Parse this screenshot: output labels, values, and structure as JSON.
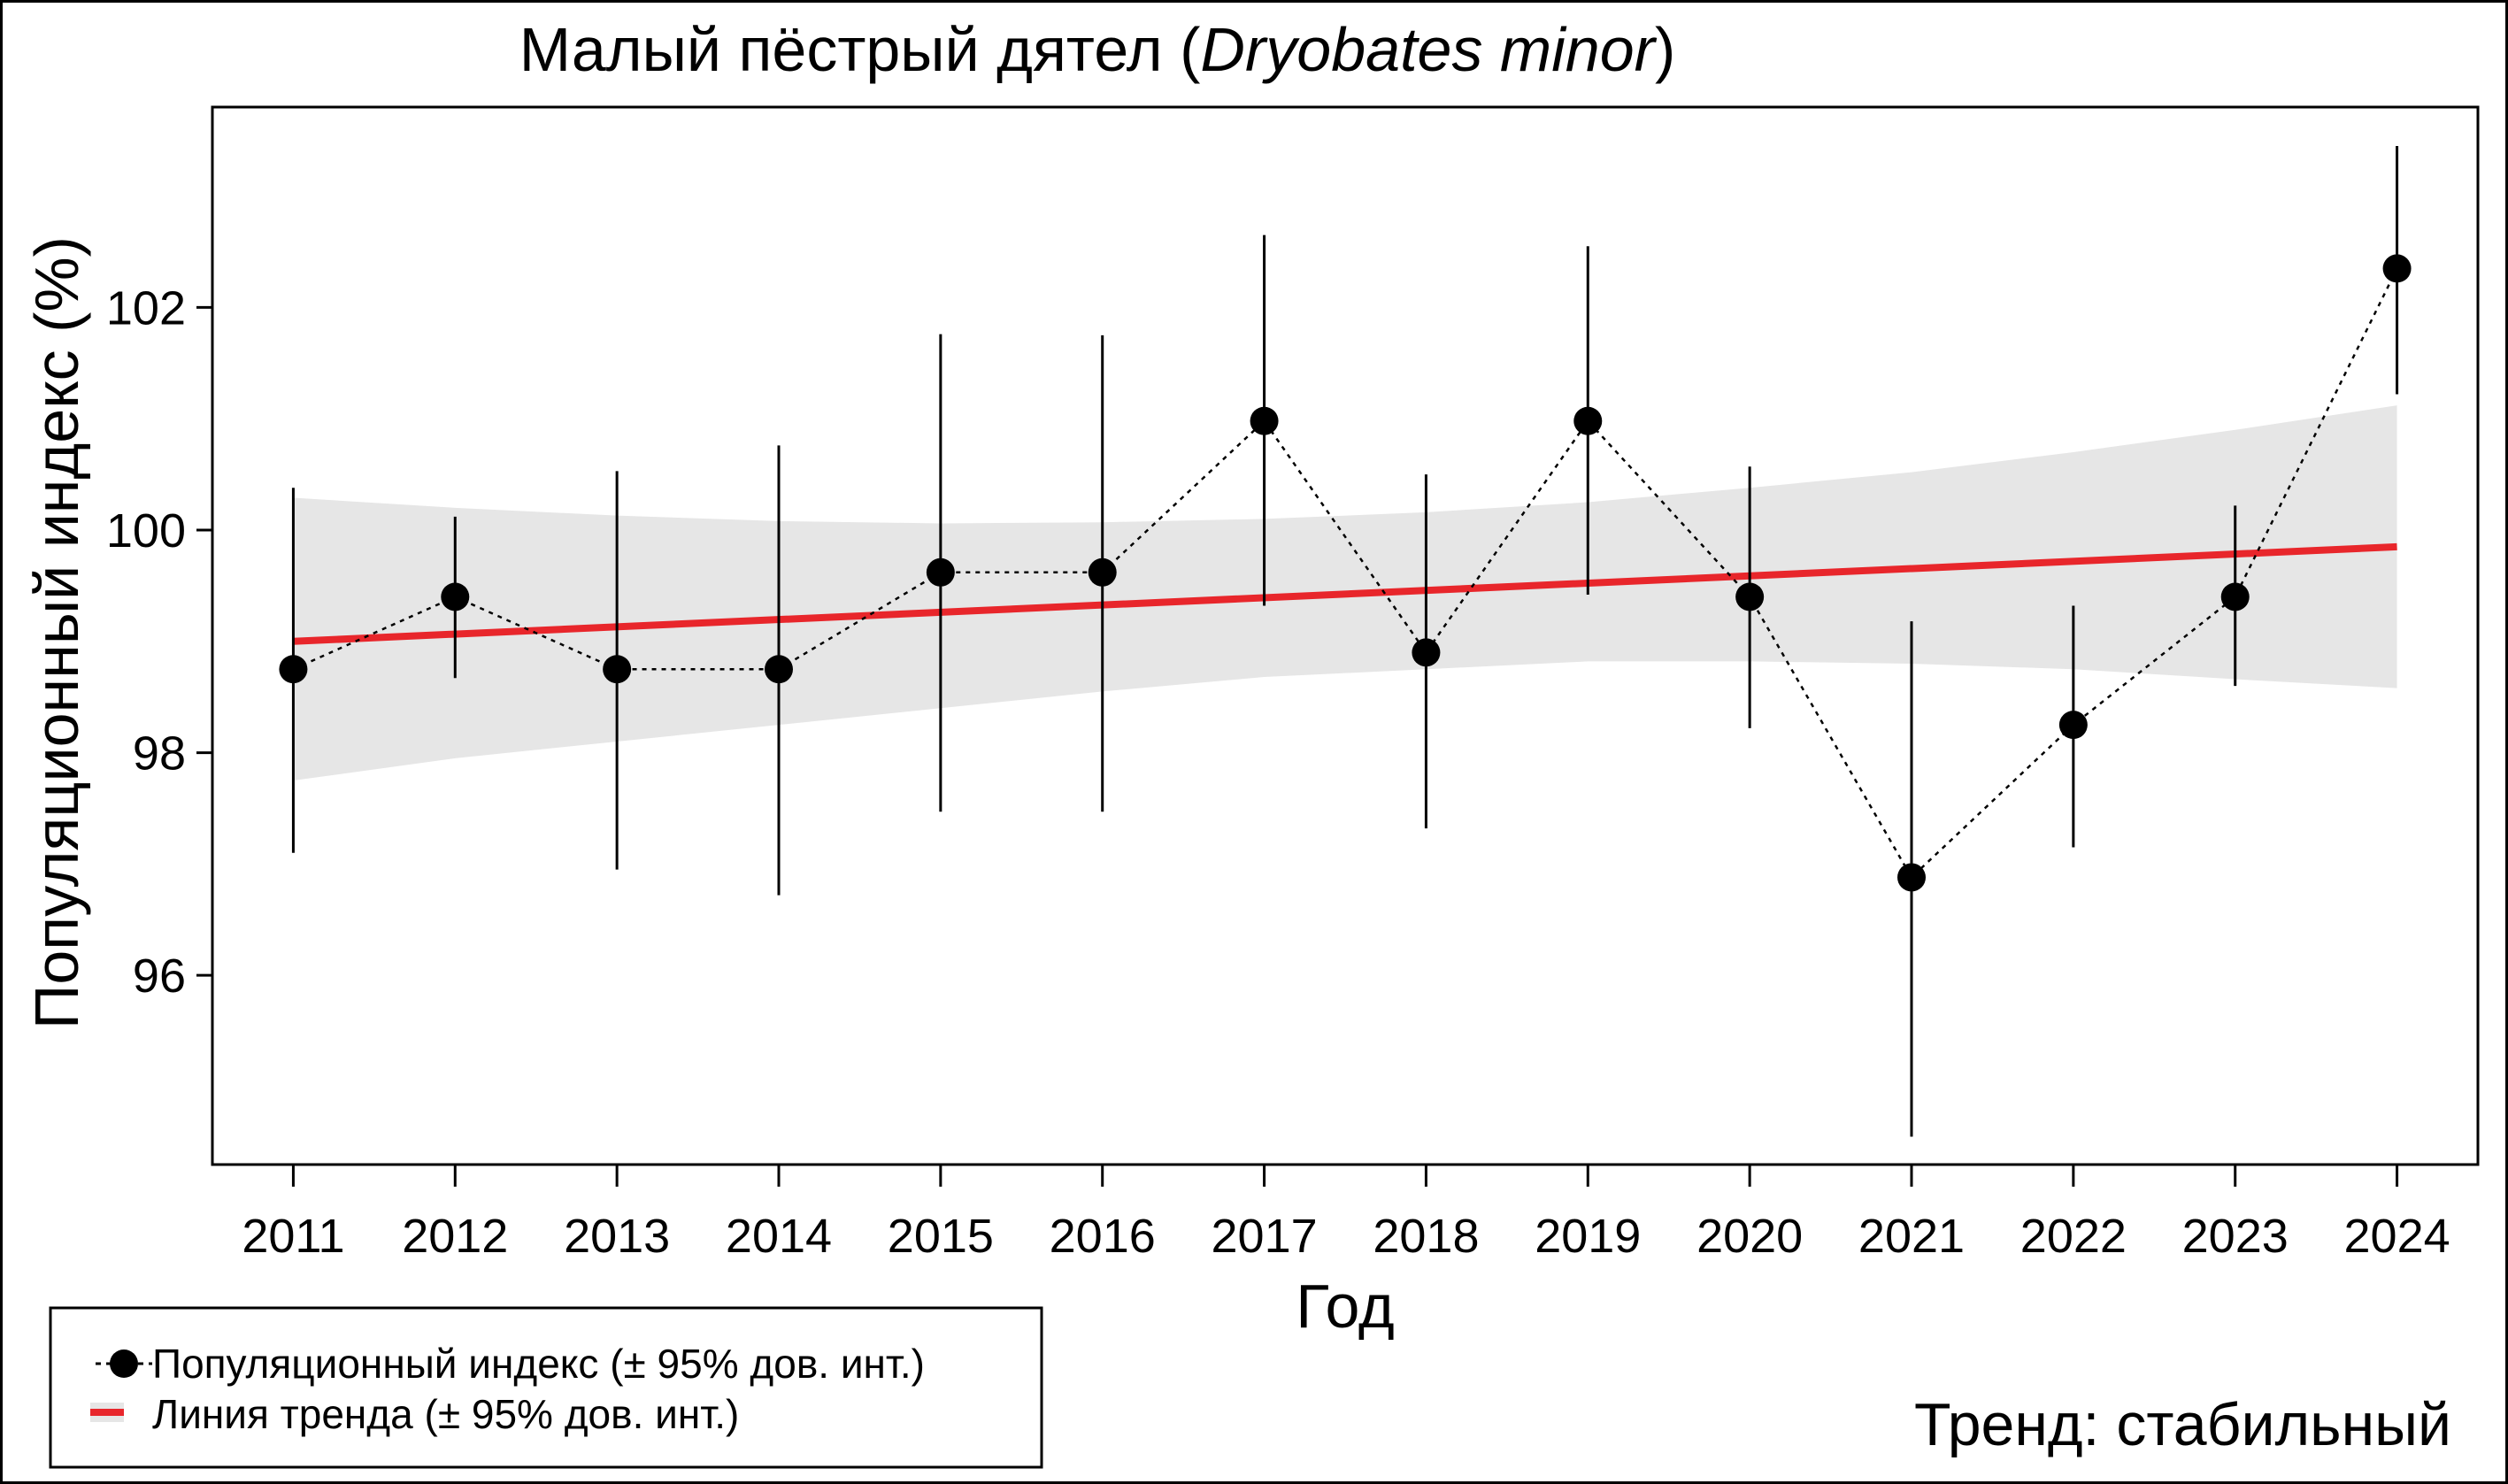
{
  "chart_data": {
    "type": "line",
    "title": {
      "prefix": "Малый пёстрый дятел (",
      "species": "Dryobates minor",
      "suffix": ")"
    },
    "xlabel": "Год",
    "ylabel": "Популяционный индекс (%)",
    "xlim": [
      2010.5,
      2024.5
    ],
    "ylim": [
      94.3,
      103.8
    ],
    "yticks": [
      96,
      98,
      100,
      102
    ],
    "x": [
      2011,
      2012,
      2013,
      2014,
      2015,
      2016,
      2017,
      2018,
      2019,
      2020,
      2021,
      2022,
      2023,
      2024
    ],
    "series": [
      {
        "name": "Популяционный индекс (± 95% дов. инт.)",
        "values": [
          98.75,
          99.4,
          98.75,
          98.75,
          99.62,
          99.62,
          100.98,
          98.9,
          100.98,
          99.4,
          96.88,
          98.25,
          99.4,
          102.35
        ],
        "lower": [
          97.1,
          98.67,
          96.95,
          96.72,
          97.47,
          97.47,
          99.32,
          97.32,
          99.42,
          98.22,
          94.55,
          97.15,
          98.6,
          101.22
        ],
        "upper": [
          100.38,
          100.12,
          100.53,
          100.76,
          101.76,
          101.75,
          102.65,
          100.5,
          102.55,
          100.57,
          99.18,
          99.32,
          100.22,
          103.45
        ]
      }
    ],
    "trend": {
      "name": "Линия тренда (± 95% дов. инт.)",
      "start": 99.0,
      "end": 99.85,
      "band_lower": [
        97.75,
        97.95,
        98.1,
        98.25,
        98.4,
        98.55,
        98.68,
        98.75,
        98.82,
        98.82,
        98.8,
        98.75,
        98.66,
        98.58
      ],
      "band_upper": [
        100.29,
        100.2,
        100.13,
        100.08,
        100.06,
        100.07,
        100.1,
        100.16,
        100.25,
        100.38,
        100.52,
        100.7,
        100.9,
        101.12
      ]
    },
    "legend_position": "bottom-left",
    "trend_label": "Тренд: стабильный",
    "colors": {
      "points": "#000000",
      "trend_line": "#e8262b",
      "band": "#e6e6e6",
      "trend_label": "#000080"
    }
  }
}
